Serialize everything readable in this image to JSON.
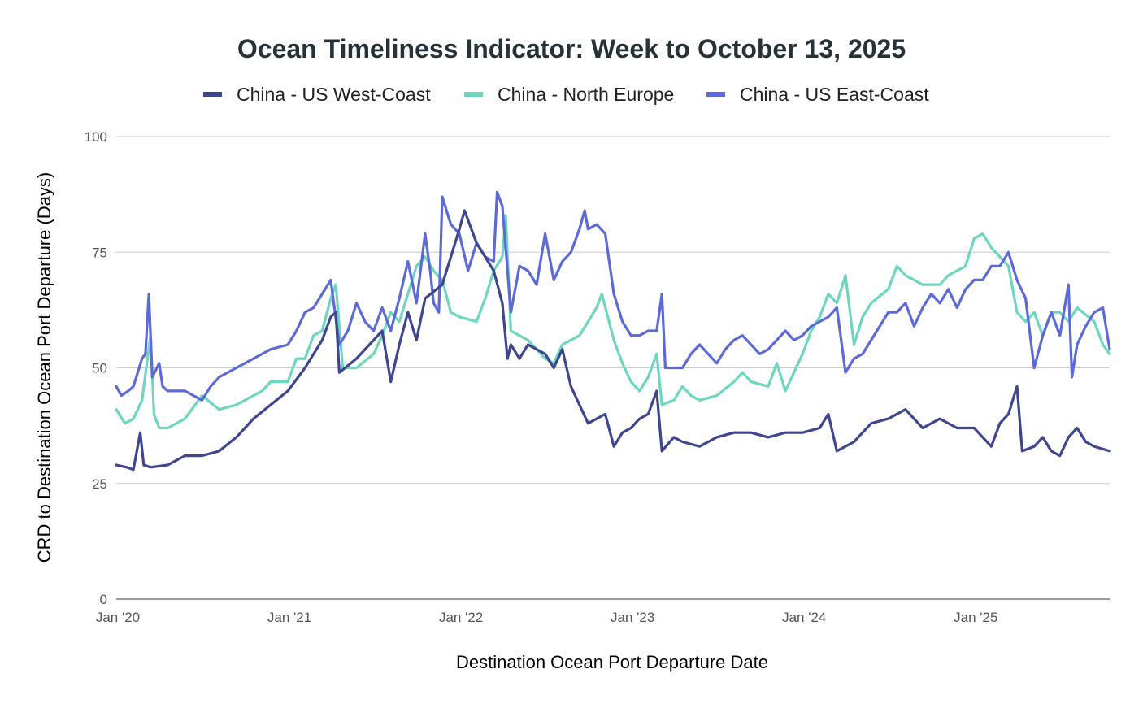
{
  "chart_data": {
    "type": "line",
    "title": "Ocean Timeliness Indicator: Week to October 13, 2025",
    "xlabel": "Destination Ocean Port Departure Date",
    "ylabel": "CRD to Destination Ocean Port Departure (Days)",
    "ylim": [
      0,
      100
    ],
    "yticks": [
      0,
      25,
      50,
      75,
      100
    ],
    "yticklabels": [
      "0",
      "25",
      "50",
      "75",
      "100"
    ],
    "xlim": [
      2020.0,
      2025.79
    ],
    "xticks": [
      2020.0,
      2021.0,
      2022.0,
      2023.0,
      2024.0,
      2025.0
    ],
    "xticklabels": [
      "Jan '20",
      "Jan '21",
      "Jan '22",
      "Jan '23",
      "Jan '24",
      "Jan '25"
    ],
    "x_unit": "year (decimal)",
    "grid": "horizontal",
    "legend": "top-center",
    "series": [
      {
        "name": "China - US West-Coast",
        "color": "#3d468f",
        "points": [
          [
            2020.0,
            29
          ],
          [
            2020.06,
            28.5
          ],
          [
            2020.1,
            28
          ],
          [
            2020.14,
            36
          ],
          [
            2020.16,
            29
          ],
          [
            2020.2,
            28.5
          ],
          [
            2020.3,
            29
          ],
          [
            2020.4,
            31
          ],
          [
            2020.5,
            31
          ],
          [
            2020.6,
            32
          ],
          [
            2020.7,
            35
          ],
          [
            2020.8,
            39
          ],
          [
            2020.9,
            42
          ],
          [
            2021.0,
            45
          ],
          [
            2021.1,
            50
          ],
          [
            2021.2,
            56
          ],
          [
            2021.25,
            61
          ],
          [
            2021.28,
            62
          ],
          [
            2021.3,
            49
          ],
          [
            2021.4,
            52
          ],
          [
            2021.5,
            56
          ],
          [
            2021.55,
            58
          ],
          [
            2021.6,
            47
          ],
          [
            2021.65,
            55
          ],
          [
            2021.7,
            62
          ],
          [
            2021.75,
            56
          ],
          [
            2021.8,
            65
          ],
          [
            2021.9,
            68
          ],
          [
            2022.0,
            80
          ],
          [
            2022.03,
            84
          ],
          [
            2022.1,
            77
          ],
          [
            2022.2,
            71
          ],
          [
            2022.25,
            64
          ],
          [
            2022.28,
            52
          ],
          [
            2022.3,
            55
          ],
          [
            2022.35,
            52
          ],
          [
            2022.4,
            55
          ],
          [
            2022.5,
            53
          ],
          [
            2022.55,
            50
          ],
          [
            2022.6,
            54
          ],
          [
            2022.65,
            46
          ],
          [
            2022.7,
            42
          ],
          [
            2022.75,
            38
          ],
          [
            2022.8,
            39
          ],
          [
            2022.85,
            40
          ],
          [
            2022.9,
            33
          ],
          [
            2022.95,
            36
          ],
          [
            2023.0,
            37
          ],
          [
            2023.05,
            39
          ],
          [
            2023.1,
            40
          ],
          [
            2023.15,
            45
          ],
          [
            2023.18,
            32
          ],
          [
            2023.25,
            35
          ],
          [
            2023.3,
            34
          ],
          [
            2023.4,
            33
          ],
          [
            2023.5,
            35
          ],
          [
            2023.6,
            36
          ],
          [
            2023.7,
            36
          ],
          [
            2023.8,
            35
          ],
          [
            2023.9,
            36
          ],
          [
            2024.0,
            36
          ],
          [
            2024.1,
            37
          ],
          [
            2024.15,
            40
          ],
          [
            2024.2,
            32
          ],
          [
            2024.3,
            34
          ],
          [
            2024.4,
            38
          ],
          [
            2024.5,
            39
          ],
          [
            2024.6,
            41
          ],
          [
            2024.7,
            37
          ],
          [
            2024.8,
            39
          ],
          [
            2024.9,
            37
          ],
          [
            2025.0,
            37
          ],
          [
            2025.05,
            35
          ],
          [
            2025.1,
            33
          ],
          [
            2025.15,
            38
          ],
          [
            2025.2,
            40
          ],
          [
            2025.25,
            46
          ],
          [
            2025.28,
            32
          ],
          [
            2025.35,
            33
          ],
          [
            2025.4,
            35
          ],
          [
            2025.45,
            32
          ],
          [
            2025.5,
            31
          ],
          [
            2025.55,
            35
          ],
          [
            2025.6,
            37
          ],
          [
            2025.65,
            34
          ],
          [
            2025.7,
            33
          ],
          [
            2025.79,
            32
          ]
        ]
      },
      {
        "name": "China - North Europe",
        "color": "#6dd6bf",
        "points": [
          [
            2020.0,
            41
          ],
          [
            2020.05,
            38
          ],
          [
            2020.1,
            39
          ],
          [
            2020.15,
            43
          ],
          [
            2020.2,
            57
          ],
          [
            2020.22,
            40
          ],
          [
            2020.25,
            37
          ],
          [
            2020.3,
            37
          ],
          [
            2020.4,
            39
          ],
          [
            2020.5,
            44
          ],
          [
            2020.6,
            41
          ],
          [
            2020.7,
            42
          ],
          [
            2020.8,
            44
          ],
          [
            2020.85,
            45
          ],
          [
            2020.9,
            47
          ],
          [
            2021.0,
            47
          ],
          [
            2021.05,
            52
          ],
          [
            2021.1,
            52
          ],
          [
            2021.15,
            57
          ],
          [
            2021.2,
            58
          ],
          [
            2021.25,
            65
          ],
          [
            2021.28,
            68
          ],
          [
            2021.32,
            50
          ],
          [
            2021.4,
            50
          ],
          [
            2021.5,
            53
          ],
          [
            2021.55,
            57
          ],
          [
            2021.6,
            62
          ],
          [
            2021.65,
            60
          ],
          [
            2021.7,
            66
          ],
          [
            2021.75,
            72
          ],
          [
            2021.8,
            74
          ],
          [
            2021.85,
            71
          ],
          [
            2021.9,
            69
          ],
          [
            2021.95,
            62
          ],
          [
            2022.0,
            61
          ],
          [
            2022.1,
            60
          ],
          [
            2022.15,
            65
          ],
          [
            2022.2,
            71
          ],
          [
            2022.25,
            74
          ],
          [
            2022.27,
            83
          ],
          [
            2022.3,
            58
          ],
          [
            2022.4,
            56
          ],
          [
            2022.5,
            52
          ],
          [
            2022.55,
            51
          ],
          [
            2022.6,
            55
          ],
          [
            2022.7,
            57
          ],
          [
            2022.75,
            60
          ],
          [
            2022.8,
            63
          ],
          [
            2022.83,
            66
          ],
          [
            2022.9,
            56
          ],
          [
            2022.95,
            51
          ],
          [
            2023.0,
            47
          ],
          [
            2023.05,
            45
          ],
          [
            2023.1,
            48
          ],
          [
            2023.15,
            53
          ],
          [
            2023.18,
            42
          ],
          [
            2023.25,
            43
          ],
          [
            2023.3,
            46
          ],
          [
            2023.35,
            44
          ],
          [
            2023.4,
            43
          ],
          [
            2023.5,
            44
          ],
          [
            2023.6,
            47
          ],
          [
            2023.65,
            49
          ],
          [
            2023.7,
            47
          ],
          [
            2023.8,
            46
          ],
          [
            2023.85,
            51
          ],
          [
            2023.9,
            45
          ],
          [
            2024.0,
            53
          ],
          [
            2024.05,
            58
          ],
          [
            2024.1,
            61
          ],
          [
            2024.15,
            66
          ],
          [
            2024.2,
            64
          ],
          [
            2024.25,
            70
          ],
          [
            2024.3,
            55
          ],
          [
            2024.35,
            61
          ],
          [
            2024.4,
            64
          ],
          [
            2024.5,
            67
          ],
          [
            2024.55,
            72
          ],
          [
            2024.6,
            70
          ],
          [
            2024.7,
            68
          ],
          [
            2024.8,
            68
          ],
          [
            2024.85,
            70
          ],
          [
            2024.9,
            71
          ],
          [
            2024.95,
            72
          ],
          [
            2025.0,
            78
          ],
          [
            2025.05,
            79
          ],
          [
            2025.1,
            76
          ],
          [
            2025.15,
            74
          ],
          [
            2025.2,
            72
          ],
          [
            2025.25,
            62
          ],
          [
            2025.3,
            60
          ],
          [
            2025.35,
            62
          ],
          [
            2025.4,
            57
          ],
          [
            2025.45,
            62
          ],
          [
            2025.5,
            62
          ],
          [
            2025.55,
            60
          ],
          [
            2025.6,
            63
          ],
          [
            2025.7,
            60
          ],
          [
            2025.75,
            55
          ],
          [
            2025.79,
            53
          ]
        ]
      },
      {
        "name": "China - US East-Coast",
        "color": "#5b6ad8",
        "points": [
          [
            2020.0,
            46
          ],
          [
            2020.03,
            44
          ],
          [
            2020.07,
            45
          ],
          [
            2020.1,
            46
          ],
          [
            2020.15,
            52
          ],
          [
            2020.17,
            53
          ],
          [
            2020.19,
            66
          ],
          [
            2020.21,
            48
          ],
          [
            2020.25,
            51
          ],
          [
            2020.27,
            46
          ],
          [
            2020.3,
            45
          ],
          [
            2020.4,
            45
          ],
          [
            2020.45,
            44
          ],
          [
            2020.5,
            43
          ],
          [
            2020.55,
            46
          ],
          [
            2020.6,
            48
          ],
          [
            2020.7,
            50
          ],
          [
            2020.8,
            52
          ],
          [
            2020.85,
            53
          ],
          [
            2020.9,
            54
          ],
          [
            2021.0,
            55
          ],
          [
            2021.05,
            58
          ],
          [
            2021.1,
            62
          ],
          [
            2021.15,
            63
          ],
          [
            2021.2,
            66
          ],
          [
            2021.25,
            69
          ],
          [
            2021.3,
            55
          ],
          [
            2021.35,
            58
          ],
          [
            2021.4,
            64
          ],
          [
            2021.45,
            60
          ],
          [
            2021.5,
            58
          ],
          [
            2021.55,
            63
          ],
          [
            2021.6,
            58
          ],
          [
            2021.65,
            65
          ],
          [
            2021.7,
            73
          ],
          [
            2021.75,
            64
          ],
          [
            2021.8,
            79
          ],
          [
            2021.83,
            71
          ],
          [
            2021.85,
            64
          ],
          [
            2021.88,
            62
          ],
          [
            2021.9,
            87
          ],
          [
            2021.95,
            81
          ],
          [
            2022.0,
            79
          ],
          [
            2022.05,
            71
          ],
          [
            2022.1,
            77
          ],
          [
            2022.15,
            74
          ],
          [
            2022.2,
            73
          ],
          [
            2022.22,
            88
          ],
          [
            2022.25,
            85
          ],
          [
            2022.3,
            62
          ],
          [
            2022.35,
            72
          ],
          [
            2022.4,
            71
          ],
          [
            2022.45,
            68
          ],
          [
            2022.5,
            79
          ],
          [
            2022.55,
            69
          ],
          [
            2022.6,
            73
          ],
          [
            2022.65,
            75
          ],
          [
            2022.7,
            80
          ],
          [
            2022.73,
            84
          ],
          [
            2022.75,
            80
          ],
          [
            2022.8,
            81
          ],
          [
            2022.85,
            79
          ],
          [
            2022.9,
            66
          ],
          [
            2022.95,
            60
          ],
          [
            2023.0,
            57
          ],
          [
            2023.05,
            57
          ],
          [
            2023.1,
            58
          ],
          [
            2023.15,
            58
          ],
          [
            2023.18,
            66
          ],
          [
            2023.2,
            50
          ],
          [
            2023.3,
            50
          ],
          [
            2023.35,
            53
          ],
          [
            2023.4,
            55
          ],
          [
            2023.45,
            53
          ],
          [
            2023.5,
            51
          ],
          [
            2023.55,
            54
          ],
          [
            2023.6,
            56
          ],
          [
            2023.65,
            57
          ],
          [
            2023.7,
            55
          ],
          [
            2023.75,
            53
          ],
          [
            2023.8,
            54
          ],
          [
            2023.9,
            58
          ],
          [
            2023.95,
            56
          ],
          [
            2024.0,
            57
          ],
          [
            2024.05,
            59
          ],
          [
            2024.1,
            60
          ],
          [
            2024.15,
            61
          ],
          [
            2024.2,
            63
          ],
          [
            2024.25,
            49
          ],
          [
            2024.3,
            52
          ],
          [
            2024.35,
            53
          ],
          [
            2024.4,
            56
          ],
          [
            2024.45,
            59
          ],
          [
            2024.5,
            62
          ],
          [
            2024.55,
            62
          ],
          [
            2024.6,
            64
          ],
          [
            2024.65,
            59
          ],
          [
            2024.7,
            63
          ],
          [
            2024.75,
            66
          ],
          [
            2024.8,
            64
          ],
          [
            2024.85,
            67
          ],
          [
            2024.9,
            63
          ],
          [
            2024.95,
            67
          ],
          [
            2025.0,
            69
          ],
          [
            2025.05,
            69
          ],
          [
            2025.1,
            72
          ],
          [
            2025.15,
            72
          ],
          [
            2025.2,
            75
          ],
          [
            2025.25,
            69
          ],
          [
            2025.3,
            65
          ],
          [
            2025.35,
            50
          ],
          [
            2025.4,
            57
          ],
          [
            2025.45,
            62
          ],
          [
            2025.5,
            57
          ],
          [
            2025.55,
            68
          ],
          [
            2025.57,
            48
          ],
          [
            2025.6,
            55
          ],
          [
            2025.65,
            59
          ],
          [
            2025.7,
            62
          ],
          [
            2025.75,
            63
          ],
          [
            2025.79,
            54
          ]
        ]
      }
    ]
  }
}
